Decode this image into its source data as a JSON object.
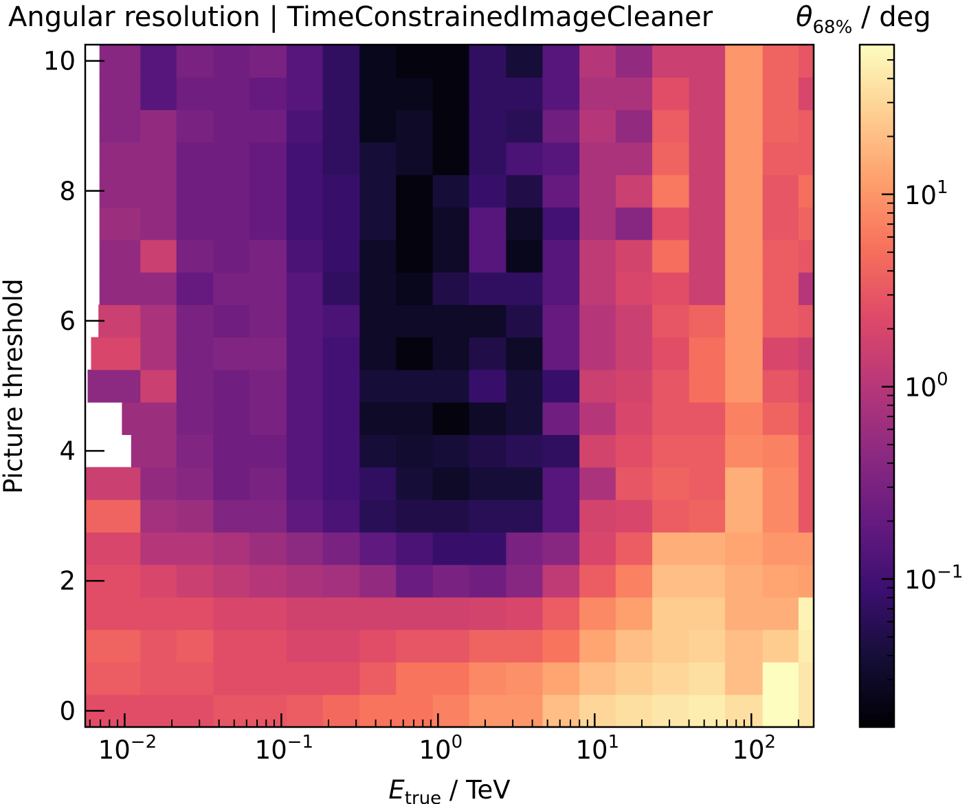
{
  "chart_data": {
    "type": "heatmap",
    "title": "Angular resolution | TimeConstrainedImageCleaner",
    "xlabel": "E_true / TeV",
    "xlabel_main": "E",
    "xlabel_sub": "true",
    "xlabel_unit": " / TeV",
    "ylabel": "Picture threshold",
    "colorbar_label": "θ68% / deg",
    "colorbar_label_main": "θ",
    "colorbar_label_sub": "68%",
    "colorbar_label_unit": " / deg",
    "x_scale": "log",
    "xlim": [
      0.0056,
      250
    ],
    "ylim": [
      -0.25,
      10.25
    ],
    "x_ticks": [
      0.01,
      0.1,
      1,
      10,
      100
    ],
    "x_tick_labels": [
      {
        "base": "10",
        "exp": "−2"
      },
      {
        "base": "10",
        "exp": "−1"
      },
      {
        "base": "10",
        "exp": "0"
      },
      {
        "base": "10",
        "exp": "1"
      },
      {
        "base": "10",
        "exp": "2"
      }
    ],
    "y_ticks": [
      0,
      2,
      4,
      6,
      8,
      10
    ],
    "y_tick_labels": [
      "0",
      "2",
      "4",
      "6",
      "8",
      "10"
    ],
    "color_scale": "log",
    "clim": [
      0.017,
      60
    ],
    "colorbar_ticks": [
      0.1,
      1,
      10
    ],
    "colorbar_tick_labels": [
      {
        "base": "10",
        "exp": "−1"
      },
      {
        "base": "10",
        "exp": "0"
      },
      {
        "base": "10",
        "exp": "1"
      }
    ],
    "colormap": "magma",
    "x_bin_edges": [
      0.0056,
      0.0126,
      0.0214,
      0.0368,
      0.0625,
      0.108,
      0.184,
      0.316,
      0.54,
      0.925,
      1.58,
      2.72,
      4.65,
      8.0,
      13.6,
      23.3,
      40.0,
      68.0,
      118,
      200,
      250
    ],
    "y_values": [
      0,
      0.5,
      1,
      1.5,
      2,
      2.5,
      3,
      3.5,
      4,
      4.5,
      5,
      5.5,
      6,
      6.5,
      7,
      7.5,
      8,
      8.5,
      9,
      9.5,
      10
    ],
    "z_values": [
      [
        2.5,
        2.5,
        2.5,
        3.0,
        3.0,
        3.5,
        4.5,
        5.5,
        5.5,
        7.0,
        10,
        10,
        20,
        30,
        35,
        40,
        45,
        35,
        60,
        40
      ],
      [
        3.5,
        3.0,
        3.0,
        2.5,
        2.5,
        2.5,
        2.5,
        3.5,
        5.5,
        5.5,
        8.0,
        9.0,
        13,
        20,
        25,
        30,
        35,
        20,
        60,
        40
      ],
      [
        4.0,
        3.0,
        3.5,
        2.5,
        2.5,
        2.0,
        2.0,
        2.5,
        3.0,
        3.0,
        4.0,
        4.0,
        5.5,
        13,
        20,
        25,
        28,
        20,
        25,
        45
      ],
      [
        2.5,
        2.5,
        2.5,
        2.0,
        2.0,
        1.7,
        1.7,
        1.7,
        1.7,
        1.7,
        1.8,
        2.0,
        3.5,
        8.0,
        12,
        25,
        25,
        15,
        15,
        50
      ],
      [
        2.5,
        2.0,
        1.5,
        1.2,
        1.0,
        0.8,
        0.7,
        0.5,
        0.22,
        0.3,
        0.25,
        0.4,
        1.2,
        3.5,
        7.0,
        20,
        20,
        15,
        13,
        12
      ],
      [
        2.0,
        1.0,
        1.0,
        0.8,
        0.6,
        0.45,
        0.3,
        0.18,
        0.12,
        0.08,
        0.08,
        0.3,
        0.4,
        2.0,
        3.5,
        15,
        15,
        13,
        10,
        10
      ],
      [
        4.0,
        0.7,
        0.6,
        0.35,
        0.35,
        0.18,
        0.12,
        0.06,
        0.05,
        0.05,
        0.06,
        0.06,
        0.15,
        1.8,
        2.0,
        3.5,
        4.0,
        15,
        8.0,
        3.0
      ],
      [
        1.5,
        0.5,
        0.4,
        0.25,
        0.3,
        0.15,
        0.1,
        0.07,
        0.04,
        0.03,
        0.04,
        0.04,
        0.15,
        0.8,
        3.0,
        4.0,
        3.5,
        15,
        8.0,
        3.0
      ],
      [
        0.6,
        0.6,
        0.35,
        0.25,
        0.25,
        0.15,
        0.1,
        0.04,
        0.035,
        0.04,
        0.05,
        0.06,
        0.07,
        1.8,
        2.5,
        3.5,
        3.5,
        8.0,
        7.0,
        3.0
      ],
      [
        0.6,
        0.6,
        0.3,
        0.25,
        0.3,
        0.15,
        0.1,
        0.03,
        0.03,
        0.02,
        0.03,
        0.04,
        0.25,
        1.0,
        2.0,
        3.0,
        3.0,
        7.0,
        4.0,
        2.5
      ],
      [
        0.45,
        1.5,
        0.3,
        0.25,
        0.3,
        0.15,
        0.1,
        0.04,
        0.04,
        0.04,
        0.08,
        0.04,
        0.08,
        1.5,
        1.8,
        3.0,
        5.0,
        10,
        3.0,
        2.0
      ],
      [
        2.0,
        0.8,
        0.3,
        0.35,
        0.35,
        0.15,
        0.1,
        0.03,
        0.02,
        0.03,
        0.05,
        0.03,
        0.2,
        1.0,
        1.5,
        2.5,
        5.0,
        10,
        2.0,
        1.5
      ],
      [
        1.5,
        0.8,
        0.3,
        0.25,
        0.3,
        0.15,
        0.12,
        0.03,
        0.03,
        0.03,
        0.03,
        0.05,
        0.2,
        1.0,
        1.5,
        3.0,
        4.0,
        10,
        3.5,
        3.0
      ],
      [
        0.5,
        0.5,
        0.2,
        0.3,
        0.3,
        0.15,
        0.07,
        0.03,
        0.025,
        0.05,
        0.07,
        0.07,
        0.15,
        1.2,
        2.0,
        2.5,
        1.5,
        10,
        3.5,
        1.0
      ],
      [
        0.5,
        1.5,
        0.3,
        0.25,
        0.3,
        0.12,
        0.08,
        0.03,
        0.02,
        0.03,
        0.15,
        0.025,
        0.15,
        1.2,
        1.8,
        5.0,
        1.5,
        10,
        3.5,
        3.0
      ],
      [
        0.6,
        0.5,
        0.25,
        0.25,
        0.2,
        0.1,
        0.08,
        0.04,
        0.02,
        0.03,
        0.15,
        0.03,
        0.1,
        0.8,
        0.4,
        2.5,
        1.5,
        10,
        3.0,
        4.0
      ],
      [
        0.5,
        0.5,
        0.25,
        0.25,
        0.2,
        0.1,
        0.08,
        0.04,
        0.02,
        0.04,
        0.08,
        0.05,
        0.2,
        0.8,
        1.5,
        6.0,
        1.5,
        10,
        3.0,
        5.0
      ],
      [
        0.5,
        0.5,
        0.25,
        0.25,
        0.2,
        0.1,
        0.07,
        0.04,
        0.03,
        0.02,
        0.07,
        0.12,
        0.15,
        0.8,
        0.8,
        4.0,
        1.5,
        10,
        3.5,
        3.5
      ],
      [
        0.4,
        0.5,
        0.3,
        0.25,
        0.25,
        0.12,
        0.07,
        0.025,
        0.03,
        0.02,
        0.07,
        0.06,
        0.25,
        1.0,
        0.5,
        3.5,
        1.5,
        10,
        4.0,
        3.5
      ],
      [
        0.4,
        0.15,
        0.25,
        0.25,
        0.2,
        0.15,
        0.07,
        0.025,
        0.025,
        0.02,
        0.07,
        0.07,
        0.15,
        0.8,
        0.8,
        2.5,
        1.5,
        10,
        4.0,
        2.0
      ],
      [
        0.4,
        0.15,
        0.3,
        0.25,
        0.3,
        0.15,
        0.07,
        0.025,
        0.02,
        0.02,
        0.07,
        0.04,
        0.15,
        1.0,
        0.5,
        1.5,
        1.5,
        10,
        4.0,
        3.0
      ]
    ],
    "left_edge_low_x": [
      0.0056,
      0.0056,
      0.0056,
      0.0056,
      0.0056,
      0.0056,
      0.0056,
      0.0056,
      0.011,
      0.0096,
      0.0058,
      0.0061,
      0.0068,
      0.0069,
      0.0069,
      0.0069,
      0.0069,
      0.0069,
      0.0069,
      0.0069,
      0.0069
    ],
    "grid": false
  }
}
